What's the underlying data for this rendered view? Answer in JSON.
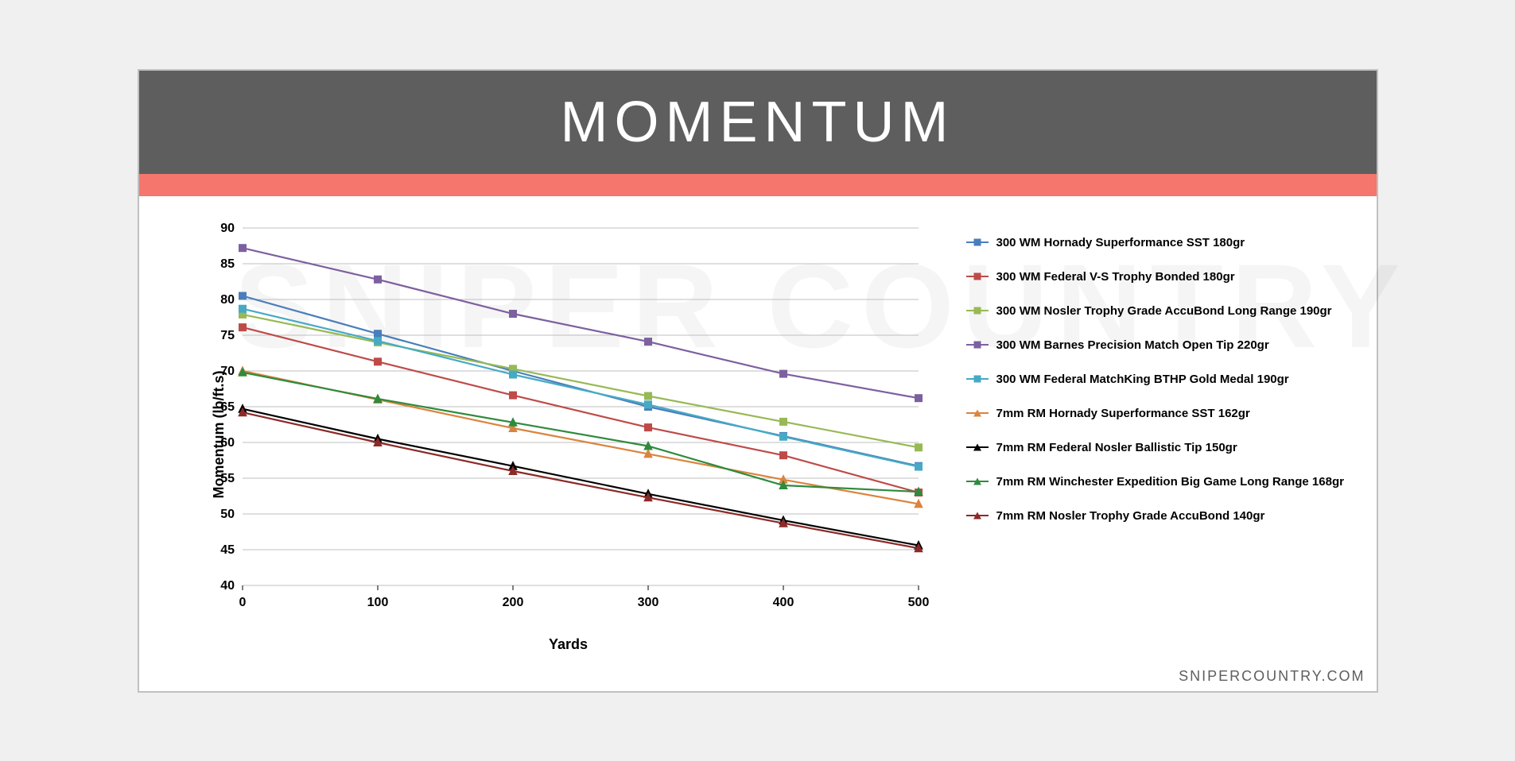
{
  "title": "MOMENTUM",
  "footer": "SNIPERCOUNTRY.COM",
  "watermark": "SNIPER COUNTRY",
  "chart": {
    "type": "line",
    "xlabel": "Yards",
    "ylabel": "Momentum (lb/ft.s)",
    "x_categories": [
      "0",
      "100",
      "200",
      "300",
      "400",
      "500"
    ],
    "ylim": [
      40,
      90
    ],
    "ytick_step": 5,
    "background_color": "#ffffff",
    "grid_color": "#bfbfbf",
    "title_bg": "#5e5e5e",
    "accent_color": "#f5766d",
    "label_fontsize": 18,
    "tick_fontsize": 16,
    "legend_fontsize": 15,
    "series": [
      {
        "label": "300 WM Hornady Superformance SST 180gr",
        "color": "#4a7ebb",
        "marker": "square",
        "values": [
          80.5,
          75.2,
          70.0,
          65.0,
          60.9,
          56.7
        ]
      },
      {
        "label": "300 WM Federal V-S Trophy Bonded 180gr",
        "color": "#be4b48",
        "marker": "square",
        "values": [
          76.1,
          71.3,
          66.6,
          62.1,
          58.2,
          53.0
        ]
      },
      {
        "label": "300 WM Nosler Trophy Grade AccuBond Long Range 190gr",
        "color": "#98b954",
        "marker": "square",
        "values": [
          77.9,
          74.0,
          70.3,
          66.5,
          62.9,
          59.3
        ]
      },
      {
        "label": "300 WM Barnes Precision Match Open Tip 220gr",
        "color": "#7d60a0",
        "marker": "square",
        "values": [
          87.2,
          82.8,
          78.0,
          74.1,
          69.6,
          66.2
        ]
      },
      {
        "label": "300 WM Federal MatchKing BTHP Gold Medal 190gr",
        "color": "#46aac5",
        "marker": "square",
        "values": [
          78.7,
          74.2,
          69.5,
          65.3,
          60.8,
          56.6
        ]
      },
      {
        "label": "7mm RM Hornady  Superformance  SST  162gr",
        "color": "#db843d",
        "marker": "triangle",
        "values": [
          70.0,
          66.0,
          62.0,
          58.4,
          54.8,
          51.4
        ]
      },
      {
        "label": "7mm RM Federal  Nosler  Ballistic  Tip 150gr",
        "color": "#000000",
        "marker": "triangle",
        "values": [
          64.7,
          60.5,
          56.7,
          52.8,
          49.1,
          45.6
        ]
      },
      {
        "label": "7mm RM Winchester  Expedition  Big  Game  Long  Range  168gr",
        "color": "#2e8b3d",
        "marker": "triangle",
        "values": [
          69.8,
          66.1,
          62.8,
          59.5,
          54.0,
          53.1
        ]
      },
      {
        "label": "7mm RM Nosler  Trophy  Grade  AccuBond  140gr",
        "color": "#8b2a27",
        "marker": "triangle",
        "values": [
          64.2,
          60.0,
          56.0,
          52.3,
          48.7,
          45.2
        ]
      }
    ]
  }
}
